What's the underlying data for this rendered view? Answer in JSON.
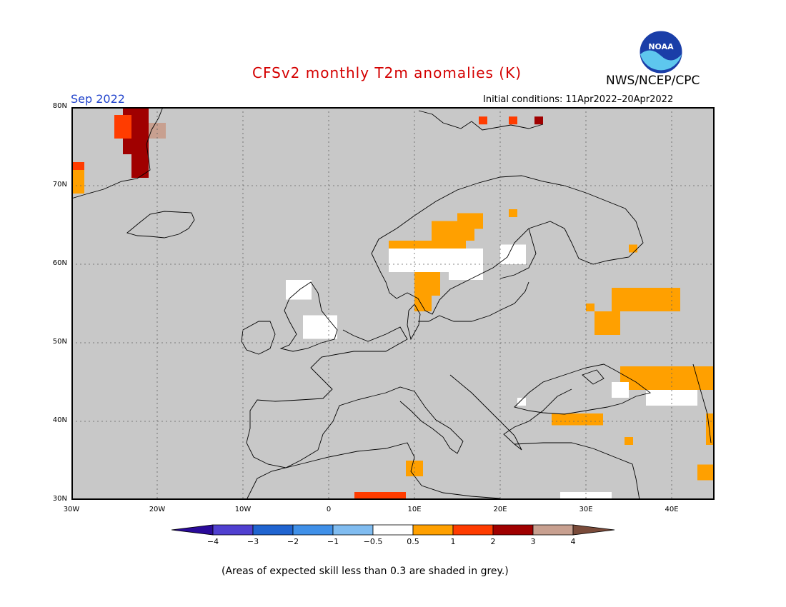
{
  "title": "CFSv2 monthly T2m anomalies (K)",
  "target_month": "Sep 2022",
  "initial_conditions": "Initial conditions: 11Apr2022–20Apr2022",
  "agency": "NWS/NCEP/CPC",
  "logo_text": "NOAA",
  "footer_note": "(Areas of expected skill less than 0.3 are shaded in grey.)",
  "map": {
    "lon_range": [
      -30,
      45
    ],
    "lat_range": [
      30,
      80
    ],
    "background_color": "#c8c8c8",
    "lat_ticks": [
      {
        "label": "80N",
        "value": 80
      },
      {
        "label": "70N",
        "value": 70
      },
      {
        "label": "60N",
        "value": 60
      },
      {
        "label": "50N",
        "value": 50
      },
      {
        "label": "40N",
        "value": 40
      },
      {
        "label": "30N",
        "value": 30
      }
    ],
    "lon_ticks": [
      {
        "label": "30W",
        "value": -30
      },
      {
        "label": "20W",
        "value": -20
      },
      {
        "label": "10W",
        "value": -10
      },
      {
        "label": "0",
        "value": 0
      },
      {
        "label": "10E",
        "value": 10
      },
      {
        "label": "20E",
        "value": 20
      },
      {
        "label": "30E",
        "value": 30
      },
      {
        "label": "40E",
        "value": 40
      }
    ]
  },
  "colorbar": {
    "labels": [
      "−4",
      "−3",
      "−2",
      "−1",
      "−0.5",
      "0.5",
      "1",
      "2",
      "3",
      "4"
    ],
    "colors": [
      "#2a0a9a",
      "#5040d0",
      "#2064d0",
      "#4090e8",
      "#80bcf0",
      "#ffffff",
      "#ffa000",
      "#ff3c00",
      "#a00000",
      "#c8a090",
      "#7a4b3a"
    ]
  },
  "anomaly_cells": [
    {
      "region": "Greenland east coast",
      "lon": [
        -24,
        -21
      ],
      "lat": [
        74,
        80
      ],
      "level": "3"
    },
    {
      "region": "Greenland east coast",
      "lon": [
        -25,
        -23
      ],
      "lat": [
        76,
        79
      ],
      "level": "2"
    },
    {
      "region": "Greenland east coast",
      "lon": [
        -23,
        -21
      ],
      "lat": [
        71,
        74
      ],
      "level": "3"
    },
    {
      "region": "Greenland east coast",
      "lon": [
        -21,
        -19
      ],
      "lat": [
        76,
        78
      ],
      "level": "4"
    },
    {
      "region": "Greenland southeast tip",
      "lon": [
        -30,
        -28.5
      ],
      "lat": [
        69,
        73
      ],
      "level": "2"
    },
    {
      "region": "Greenland southeast tip",
      "lon": [
        -30,
        -28.5
      ],
      "lat": [
        69,
        72
      ],
      "level": "1"
    },
    {
      "region": "Svalbard",
      "lon": [
        17.5,
        18.5
      ],
      "lat": [
        77.8,
        78.8
      ],
      "level": "2"
    },
    {
      "region": "Svalbard",
      "lon": [
        21,
        22
      ],
      "lat": [
        77.8,
        78.8
      ],
      "level": "2"
    },
    {
      "region": "Svalbard",
      "lon": [
        24,
        25
      ],
      "lat": [
        77.8,
        78.8
      ],
      "level": "3"
    },
    {
      "region": "Norway coast",
      "lon": [
        7,
        16
      ],
      "lat": [
        61,
        63
      ],
      "level": "1"
    },
    {
      "region": "Norway coast",
      "lon": [
        12,
        17
      ],
      "lat": [
        63,
        65.5
      ],
      "level": "1"
    },
    {
      "region": "Norway north",
      "lon": [
        15,
        18
      ],
      "lat": [
        64.5,
        66.5
      ],
      "level": "1"
    },
    {
      "region": "Norway south interior",
      "lon": [
        7,
        15
      ],
      "lat": [
        59,
        62
      ],
      "level": "0.5"
    },
    {
      "region": "Sweden central",
      "lon": [
        14,
        18
      ],
      "lat": [
        58,
        62
      ],
      "level": "0.5"
    },
    {
      "region": "Sweden south",
      "lon": [
        10,
        13
      ],
      "lat": [
        56,
        59
      ],
      "level": "1"
    },
    {
      "region": "Denmark",
      "lon": [
        10,
        12
      ],
      "lat": [
        54,
        56
      ],
      "level": "1"
    },
    {
      "region": "Finland",
      "lon": [
        20,
        23
      ],
      "lat": [
        60,
        62.5
      ],
      "level": "0.5"
    },
    {
      "region": "Northern Russia",
      "lon": [
        21,
        22
      ],
      "lat": [
        66,
        67
      ],
      "level": "1"
    },
    {
      "region": "Russia",
      "lon": [
        35,
        36
      ],
      "lat": [
        61.5,
        62.5
      ],
      "level": "1"
    },
    {
      "region": "Russia west",
      "lon": [
        30,
        31
      ],
      "lat": [
        54,
        55
      ],
      "level": "1"
    },
    {
      "region": "Russia central",
      "lon": [
        33,
        41
      ],
      "lat": [
        54,
        57
      ],
      "level": "1"
    },
    {
      "region": "Russia central",
      "lon": [
        31,
        34
      ],
      "lat": [
        51,
        54
      ],
      "level": "1"
    },
    {
      "region": "Ukraine / Black Sea",
      "lon": [
        34,
        45
      ],
      "lat": [
        44,
        47
      ],
      "level": "1"
    },
    {
      "region": "Black Sea",
      "lon": [
        33,
        35
      ],
      "lat": [
        43,
        45
      ],
      "level": "0.5"
    },
    {
      "region": "Turkey north",
      "lon": [
        26,
        32
      ],
      "lat": [
        39.5,
        41
      ],
      "level": "1"
    },
    {
      "region": "Turkey south",
      "lon": [
        34.5,
        35.5
      ],
      "lat": [
        37,
        38
      ],
      "level": "1"
    },
    {
      "region": "Tunisia",
      "lon": [
        9,
        11
      ],
      "lat": [
        33,
        35
      ],
      "level": "1"
    },
    {
      "region": "Libya",
      "lon": [
        3,
        9
      ],
      "lat": [
        30,
        31
      ],
      "level": "2"
    },
    {
      "region": "Middle East",
      "lon": [
        43,
        45
      ],
      "lat": [
        32.5,
        34.5
      ],
      "level": "1"
    },
    {
      "region": "Middle East",
      "lon": [
        44,
        45
      ],
      "lat": [
        37,
        41
      ],
      "level": "1"
    },
    {
      "region": "Britain",
      "lon": [
        -3,
        1
      ],
      "lat": [
        50.5,
        53.5
      ],
      "level": "0.5"
    },
    {
      "region": "Scotland",
      "lon": [
        -5,
        -2
      ],
      "lat": [
        55.5,
        58
      ],
      "level": "0.5"
    },
    {
      "region": "Caucasus",
      "lon": [
        37,
        43
      ],
      "lat": [
        42,
        44
      ],
      "level": "0.5"
    },
    {
      "region": "Balkans",
      "lon": [
        22,
        23
      ],
      "lat": [
        42,
        43
      ],
      "level": "0.5"
    },
    {
      "region": "Egypt coast",
      "lon": [
        27,
        33
      ],
      "lat": [
        30,
        31
      ],
      "level": "0.5"
    }
  ]
}
